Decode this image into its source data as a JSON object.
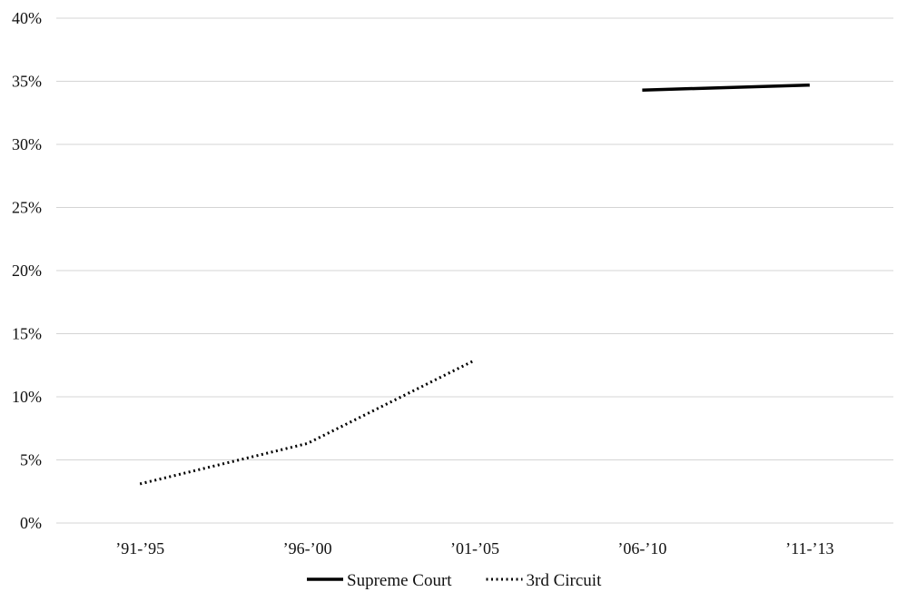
{
  "chart_data": {
    "type": "line",
    "categories": [
      "’91-’95",
      "’96-’00",
      "’01-’05",
      "’06-’10",
      "’11-’13"
    ],
    "series": [
      {
        "name": "Supreme Court",
        "values": [
          null,
          null,
          null,
          34.3,
          34.7
        ],
        "style": "solid",
        "color": "#000000"
      },
      {
        "name": "3rd Circuit",
        "values": [
          3.1,
          6.3,
          12.9,
          null,
          null
        ],
        "style": "dotted",
        "color": "#000000"
      }
    ],
    "y_ticks": [
      "0%",
      "5%",
      "10%",
      "15%",
      "20%",
      "25%",
      "30%",
      "35%",
      "40%"
    ],
    "ylim": [
      0,
      40
    ],
    "grid": "horizontal",
    "legend": "bottom",
    "title": "",
    "xlabel": "",
    "ylabel": ""
  }
}
